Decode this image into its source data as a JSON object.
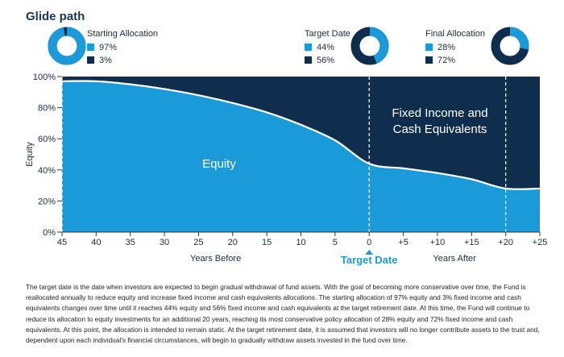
{
  "title": "Glide path",
  "colors": {
    "equity": "#1a9ad9",
    "fixed": "#0f2d4d"
  },
  "donuts": [
    {
      "heading": "Starting Allocation",
      "equity_label": "97%",
      "fixed_label": "3%",
      "equity": 97
    },
    {
      "heading": "Target Date",
      "equity_label": "44%",
      "fixed_label": "56%",
      "equity": 44
    },
    {
      "heading": "Final Allocation",
      "equity_label": "28%",
      "fixed_label": "72%",
      "equity": 28
    }
  ],
  "chart_data": {
    "type": "area",
    "ylabel": "Equity",
    "ylim": [
      0,
      100
    ],
    "yticks": [
      "0%",
      "20%",
      "40%",
      "60%",
      "80%",
      "100%"
    ],
    "xticks": [
      "45",
      "40",
      "35",
      "30",
      "25",
      "20",
      "15",
      "10",
      "5",
      "0",
      "+5",
      "+10",
      "+15",
      "+20",
      "+25"
    ],
    "x": [
      -45,
      -40,
      -35,
      -30,
      -25,
      -20,
      -15,
      -10,
      -5,
      0,
      5,
      10,
      15,
      20,
      25
    ],
    "series": [
      {
        "name": "Equity",
        "values": [
          97,
          97,
          95,
          92,
          88,
          83,
          77,
          69,
          59,
          44,
          41,
          38,
          34,
          28,
          28
        ]
      },
      {
        "name": "Fixed Income and Cash Equivalents",
        "values": [
          3,
          3,
          5,
          8,
          12,
          17,
          23,
          31,
          41,
          56,
          59,
          62,
          66,
          72,
          72
        ]
      }
    ],
    "area_labels": {
      "equity": "Equity",
      "fixed_line1": "Fixed Income and",
      "fixed_line2": "Cash Equivalents"
    },
    "xlabel_left": "Years Before",
    "xlabel_right": "Years After",
    "target_label": "Target Date"
  },
  "description": "The target date is the date when investors are expected to begin gradual withdrawal of fund assets. With the goal of becoming more conservative over time, the Fund is reallocated annually to reduce equity and increase fixed income and cash equivalents allocations. The starting allocation of 97% equity and 3% fixed income and cash equivalents changes over time until it reaches 44% equity and 56% fixed income and cash equivalents at the target retirement date. At this time, the Fund will continue to reduce its allocation to equity investments for an additional 20 years, reaching its most conservative policy allocation of 28% equity and 72% fixed income and cash equivalents. At this point, the allocation is intended to remain static. At the target retirement date, it is assumed that investors will no longer contribute assets to the trust and, dependent upon each individual's financial circumstances, will begin to gradually withdraw assets invested in the fund over time."
}
